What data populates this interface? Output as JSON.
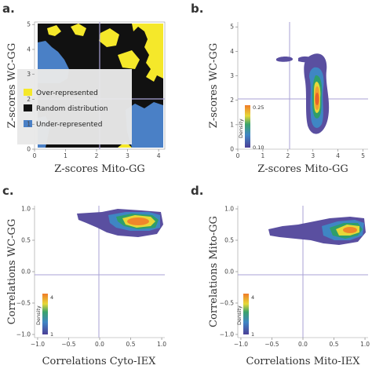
{
  "chart_data": [
    {
      "panel": "a.",
      "type": "heatmap",
      "xlabel": "Z-scores Mito-GG",
      "ylabel": "Z-scores WC-GG",
      "xlim": [
        0,
        4.2
      ],
      "ylim": [
        0,
        5.1
      ],
      "xticks": [
        0,
        1,
        2,
        3,
        4
      ],
      "yticks": [
        0,
        1,
        2,
        3,
        4,
        5
      ],
      "reference_lines": {
        "x": 2,
        "y": 2
      },
      "legend": {
        "placement": "center-left",
        "entries": [
          {
            "label": "Over-represented",
            "color": "#f5e82a"
          },
          {
            "label": "Random distribution",
            "color": "#111111"
          },
          {
            "label": "Under-represented",
            "color": "#4a80c6"
          }
        ]
      }
    },
    {
      "panel": "b.",
      "type": "heatmap",
      "xlabel": "Z-scores Mito-GG",
      "ylabel": "Z-scores WC-GG",
      "xlim": [
        0,
        5.2
      ],
      "ylim": [
        0,
        5.2
      ],
      "xticks": [
        0,
        1,
        2,
        3,
        4,
        5
      ],
      "yticks": [
        0,
        1,
        2,
        3,
        4,
        5
      ],
      "reference_lines": {
        "x": 2,
        "y": 2
      },
      "colorbar": {
        "label": "Density",
        "max_label": "0.25",
        "min_label": "0.10",
        "placement": "left"
      },
      "contours": [
        {
          "cx": 3.2,
          "cy": 2.3,
          "rx": 0.4,
          "ry": 1.3
        },
        {
          "cx": 1.8,
          "cy": 3.5,
          "rx": 0.2,
          "ry": 0.07
        }
      ]
    },
    {
      "panel": "c.",
      "type": "heatmap",
      "xlabel": "Correlations Cyto-IEX",
      "ylabel": "Correlations WC-GG",
      "xlim": [
        -1.05,
        1.05
      ],
      "ylim": [
        -1.05,
        1.05
      ],
      "xticks": [
        -1.0,
        -0.5,
        0.0,
        0.5,
        1.0
      ],
      "yticks": [
        -1.0,
        -0.5,
        0.0,
        0.5,
        1.0
      ],
      "reference_lines": {
        "x": 0,
        "y": 0
      },
      "colorbar": {
        "label": "Density",
        "max_label": "4",
        "min_label": "1",
        "placement": "left"
      },
      "contours": [
        {
          "cx": 0.55,
          "cy": 0.85,
          "rx": 0.45,
          "ry": 0.12
        }
      ]
    },
    {
      "panel": "d.",
      "type": "heatmap",
      "xlabel": "Correlations Mito-IEX",
      "ylabel": "Correlations Mito-GG",
      "xlim": [
        -1.05,
        1.05
      ],
      "ylim": [
        -1.05,
        1.05
      ],
      "xticks": [
        -1.0,
        -0.5,
        0.0,
        0.5,
        1.0
      ],
      "yticks": [
        -1.0,
        -0.5,
        0.0,
        0.5,
        1.0
      ],
      "reference_lines": {
        "x": 0,
        "y": 0
      },
      "colorbar": {
        "label": "Density",
        "max_label": "4",
        "min_label": "1",
        "placement": "left"
      },
      "contours": [
        {
          "cx": 0.6,
          "cy": 0.78,
          "rx": 0.35,
          "ry": 0.13
        }
      ]
    }
  ],
  "colors": {
    "refline": "#a9a2d6",
    "axis": "#999999",
    "density_ramp": [
      "#5a4fa0",
      "#4a7fc0",
      "#2f9e6a",
      "#c8dc4a",
      "#f2c230",
      "#f08a2a"
    ]
  }
}
